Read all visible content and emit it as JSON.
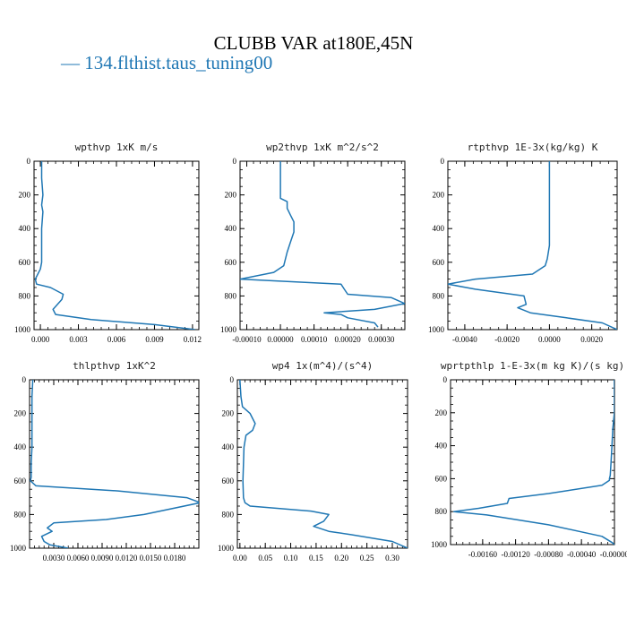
{
  "title": "CLUBB VAR at180E,45N",
  "legend": {
    "line": "—",
    "label": "134.flthist.taus_tuning00",
    "color": "#1f77b4"
  },
  "chart_data": [
    {
      "type": "line",
      "title": "wpthvp   1xK m/s",
      "xlim": [
        -0.0005,
        0.0125
      ],
      "ylim": [
        1000,
        0
      ],
      "xticks": [
        {
          "v": 0.0,
          "label": "0.000"
        },
        {
          "v": 0.003,
          "label": "0.003"
        },
        {
          "v": 0.006,
          "label": "0.006"
        },
        {
          "v": 0.009,
          "label": "0.009"
        },
        {
          "v": 0.012,
          "label": "0.012"
        }
      ],
      "yticks": [
        0,
        200,
        400,
        600,
        800,
        1000
      ],
      "series": [
        {
          "x": [
            0.0001,
            0.0001,
            0.0002,
            0.0001,
            0.0002,
            0.0001,
            0.0001,
            0.0001,
            0.0,
            -0.0004,
            -0.0003,
            0.0008,
            0.0018,
            0.0017,
            0.001,
            0.0012,
            0.004,
            0.009,
            0.0122
          ],
          "y": [
            0,
            100,
            200,
            260,
            300,
            400,
            500,
            600,
            640,
            700,
            730,
            750,
            790,
            820,
            880,
            910,
            940,
            970,
            1000
          ]
        }
      ]
    },
    {
      "type": "line",
      "title": "wp2thvp   1xK m^2/s^2",
      "xlim": [
        -0.00012,
        0.00037
      ],
      "ylim": [
        1000,
        0
      ],
      "xticks": [
        {
          "v": -0.0001,
          "label": "-0.00010"
        },
        {
          "v": 0.0,
          "label": "0.00000"
        },
        {
          "v": 0.0001,
          "label": "0.00010"
        },
        {
          "v": 0.0002,
          "label": "0.00020"
        },
        {
          "v": 0.0003,
          "label": "0.00030"
        }
      ],
      "yticks": [
        0,
        200,
        400,
        600,
        800,
        1000
      ],
      "series": [
        {
          "x": [
            0.0,
            0.0,
            0.0,
            2e-05,
            2e-05,
            3e-05,
            4e-05,
            4e-05,
            3e-05,
            2e-05,
            1e-05,
            -2e-05,
            -0.00012,
            0.00018,
            0.00019,
            0.0002,
            0.00033,
            0.00037,
            0.00028,
            0.00013,
            0.00018,
            0.0002,
            0.00028,
            0.00029
          ],
          "y": [
            0,
            150,
            220,
            240,
            280,
            320,
            360,
            420,
            480,
            540,
            620,
            660,
            700,
            730,
            760,
            790,
            810,
            845,
            880,
            900,
            910,
            930,
            960,
            985
          ]
        }
      ]
    },
    {
      "type": "line",
      "title": "rtpthvp   1E-3x(kg/kg) K",
      "xlim": [
        -0.0048,
        0.0032
      ],
      "ylim": [
        1000,
        0
      ],
      "xticks": [
        {
          "v": -0.004,
          "label": "-0.0040"
        },
        {
          "v": -0.002,
          "label": "-0.0020"
        },
        {
          "v": 0.0,
          "label": "0.0000"
        },
        {
          "v": 0.002,
          "label": "0.0020"
        }
      ],
      "yticks": [
        0,
        200,
        400,
        600,
        800,
        1000
      ],
      "series": [
        {
          "x": [
            0.0,
            0.0,
            0.0,
            0.0,
            0.0,
            0.0,
            -0.0001,
            -0.0002,
            -0.0008,
            -0.0035,
            -0.0048,
            -0.0035,
            -0.0012,
            -0.0011,
            -0.0015,
            -0.0009,
            0.0008,
            0.0025,
            0.0032
          ],
          "y": [
            0,
            100,
            200,
            300,
            400,
            500,
            580,
            620,
            670,
            700,
            730,
            760,
            800,
            850,
            870,
            900,
            930,
            960,
            1000
          ]
        }
      ]
    },
    {
      "type": "line",
      "title": "thlpthvp   1xK^2",
      "xlim": [
        0.0,
        0.021
      ],
      "ylim": [
        1000,
        0
      ],
      "xticks": [
        {
          "v": 0.003,
          "label": "0.0030"
        },
        {
          "v": 0.006,
          "label": "0.0060"
        },
        {
          "v": 0.009,
          "label": "0.0090"
        },
        {
          "v": 0.012,
          "label": "0.0120"
        },
        {
          "v": 0.015,
          "label": "0.0150"
        },
        {
          "v": 0.018,
          "label": "0.0180"
        }
      ],
      "yticks": [
        0,
        200,
        400,
        600,
        800,
        1000
      ],
      "series": [
        {
          "x": [
            0.0004,
            0.0003,
            0.0003,
            0.0003,
            0.0003,
            0.0002,
            0.0002,
            0.0001,
            0.0008,
            0.011,
            0.0195,
            0.0212,
            0.0142,
            0.0095,
            0.003,
            0.0022,
            0.0028,
            0.0015,
            0.0018,
            0.0025,
            0.0048
          ],
          "y": [
            0,
            100,
            200,
            300,
            400,
            500,
            580,
            600,
            630,
            660,
            700,
            730,
            800,
            830,
            850,
            880,
            900,
            930,
            960,
            980,
            1000
          ]
        }
      ]
    },
    {
      "type": "line",
      "title": "wp4   1x(m^4)/(s^4)",
      "xlim": [
        -0.005,
        0.33
      ],
      "ylim": [
        1000,
        0
      ],
      "xticks": [
        {
          "v": 0.0,
          "label": "0.00"
        },
        {
          "v": 0.05,
          "label": "0.05"
        },
        {
          "v": 0.1,
          "label": "0.10"
        },
        {
          "v": 0.15,
          "label": "0.15"
        },
        {
          "v": 0.2,
          "label": "0.20"
        },
        {
          "v": 0.25,
          "label": "0.25"
        },
        {
          "v": 0.3,
          "label": "0.30"
        }
      ],
      "yticks": [
        0,
        200,
        400,
        600,
        800,
        1000
      ],
      "series": [
        {
          "x": [
            0.0,
            0.002,
            0.005,
            0.02,
            0.03,
            0.025,
            0.012,
            0.008,
            0.007,
            0.006,
            0.007,
            0.01,
            0.02,
            0.14,
            0.175,
            0.165,
            0.145,
            0.175,
            0.22,
            0.3,
            0.33
          ],
          "y": [
            0,
            100,
            160,
            200,
            260,
            300,
            330,
            400,
            500,
            600,
            700,
            730,
            750,
            780,
            800,
            840,
            870,
            900,
            920,
            960,
            1000
          ]
        }
      ]
    },
    {
      "type": "line",
      "title": "wprtpthlp   1-E-3x(m kg K)/(s kg)",
      "xlim": [
        -0.00199,
        1e-06
      ],
      "ylim": [
        1000,
        0
      ],
      "xticks": [
        {
          "v": -0.0016,
          "label": "-0.00160"
        },
        {
          "v": -0.0012,
          "label": "-0.00120"
        },
        {
          "v": -0.0008,
          "label": "-0.00080"
        },
        {
          "v": -0.0004,
          "label": "-0.00040"
        },
        {
          "v": 0.0,
          "label": "-0.00000"
        }
      ],
      "yticks": [
        0,
        200,
        400,
        600,
        800,
        1000
      ],
      "series": [
        {
          "x": [
            0.0,
            0.0,
            0.0,
            -2e-05,
            -3e-05,
            -4e-05,
            -5e-05,
            -6e-05,
            -6e-05,
            -0.00015,
            -0.0008,
            -0.00128,
            -0.0013,
            -0.00165,
            -0.00195,
            -0.00155,
            -0.0008,
            -0.00015,
            -2e-05,
            0.0
          ],
          "y": [
            0,
            100,
            200,
            300,
            400,
            500,
            580,
            600,
            610,
            640,
            690,
            720,
            750,
            780,
            800,
            820,
            880,
            950,
            990,
            1000
          ]
        }
      ]
    }
  ]
}
